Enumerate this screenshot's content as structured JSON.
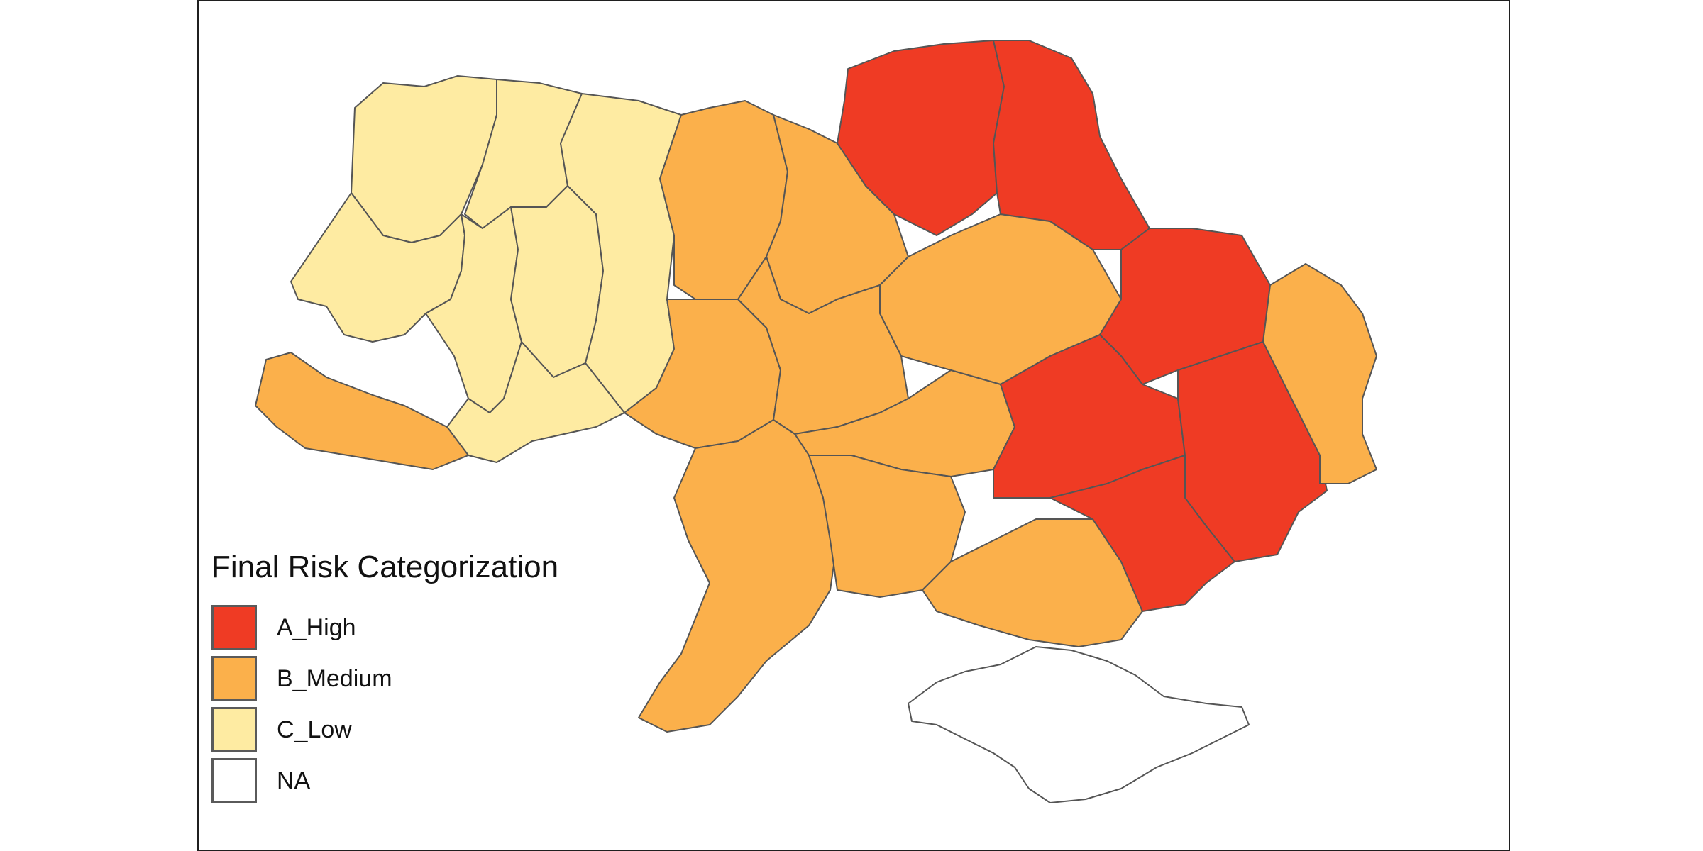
{
  "legend": {
    "title": "Final Risk Categorization",
    "items": [
      {
        "label": "A_High",
        "color": "#ef3b24"
      },
      {
        "label": "B_Medium",
        "color": "#fbb04b"
      },
      {
        "label": "C_Low",
        "color": "#feeba2"
      },
      {
        "label": "NA",
        "color": "#ffffff"
      }
    ]
  }
}
